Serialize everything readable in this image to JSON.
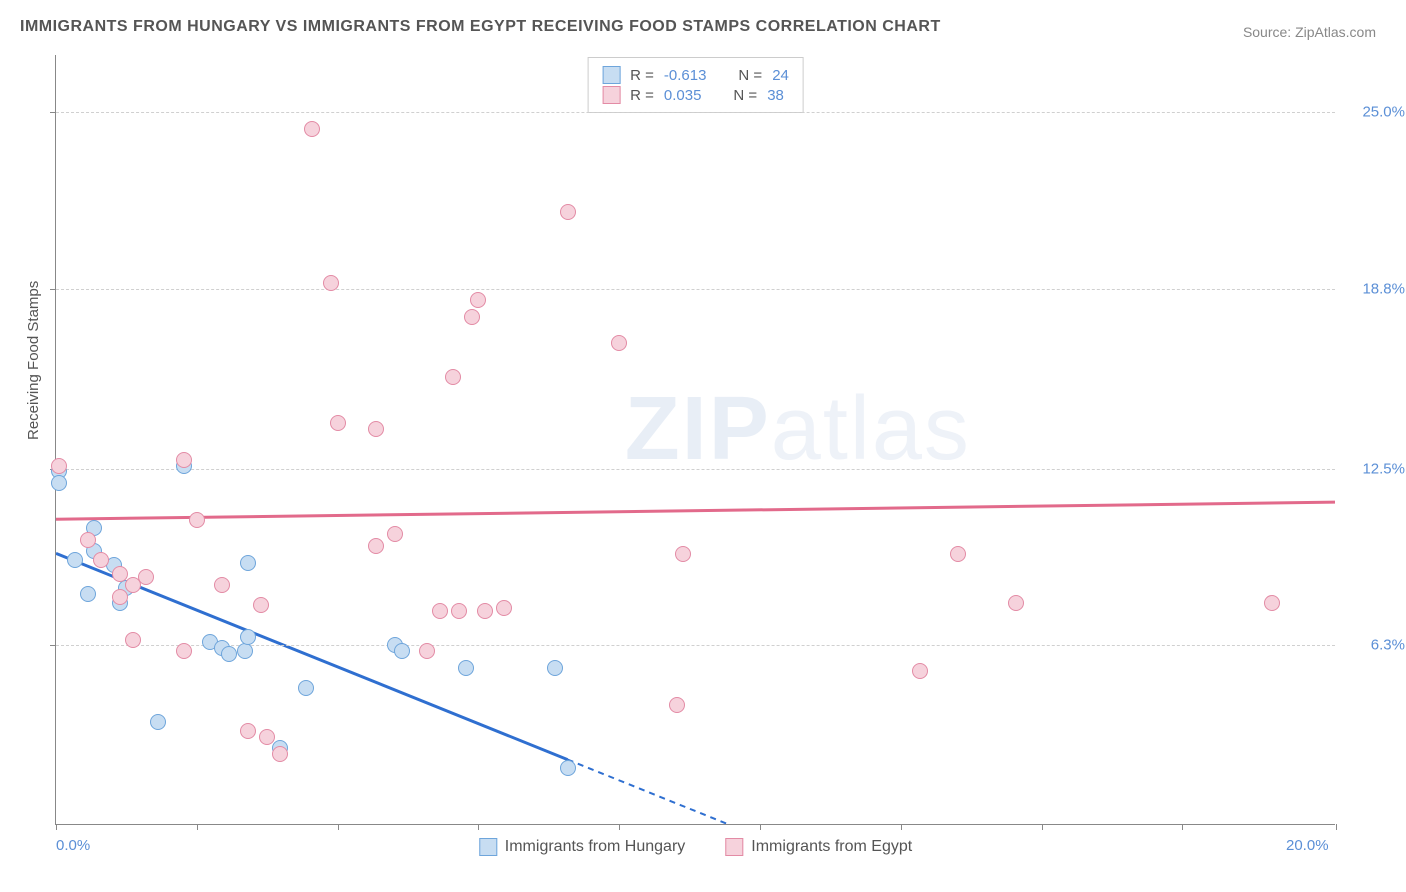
{
  "title": "IMMIGRANTS FROM HUNGARY VS IMMIGRANTS FROM EGYPT RECEIVING FOOD STAMPS CORRELATION CHART",
  "source": "Source: ZipAtlas.com",
  "ylabel": "Receiving Food Stamps",
  "watermark_bold": "ZIP",
  "watermark_thin": "atlas",
  "chart": {
    "type": "scatter",
    "xlim": [
      0,
      20
    ],
    "ylim": [
      0,
      27
    ],
    "x_ticks": [
      0,
      2.2,
      4.4,
      6.6,
      8.8,
      11.0,
      13.2,
      15.4,
      17.6,
      20.0
    ],
    "y_grid": [
      6.3,
      12.5,
      18.8,
      25.0
    ],
    "x_labels": [
      {
        "v": 0,
        "t": "0.0%"
      },
      {
        "v": 20,
        "t": "20.0%"
      }
    ],
    "y_labels": [
      {
        "v": 6.3,
        "t": "6.3%"
      },
      {
        "v": 12.5,
        "t": "12.5%"
      },
      {
        "v": 18.8,
        "t": "18.8%"
      },
      {
        "v": 25.0,
        "t": "25.0%"
      }
    ],
    "background_color": "#ffffff",
    "grid_color": "#d0d0d0",
    "point_radius": 8,
    "series": [
      {
        "name": "Immigrants from Hungary",
        "fill": "#c7ddf2",
        "stroke": "#6ea5db",
        "trend_color": "#2f6fd0",
        "trend": {
          "x1": 0,
          "y1": 9.5,
          "x2": 10.5,
          "y2": 0,
          "dash_from_x": 8.0
        },
        "R": "-0.613",
        "N": "24",
        "points": [
          [
            0.05,
            12.4
          ],
          [
            0.05,
            12.0
          ],
          [
            0.6,
            10.4
          ],
          [
            0.6,
            9.6
          ],
          [
            0.9,
            9.1
          ],
          [
            0.3,
            9.3
          ],
          [
            1.0,
            7.8
          ],
          [
            1.1,
            8.3
          ],
          [
            0.5,
            8.1
          ],
          [
            1.6,
            3.6
          ],
          [
            2.4,
            6.4
          ],
          [
            2.6,
            6.2
          ],
          [
            2.7,
            6.0
          ],
          [
            2.95,
            6.1
          ],
          [
            3.0,
            9.2
          ],
          [
            3.0,
            6.6
          ],
          [
            2.0,
            12.6
          ],
          [
            3.5,
            2.7
          ],
          [
            3.9,
            4.8
          ],
          [
            5.3,
            6.3
          ],
          [
            5.4,
            6.1
          ],
          [
            6.4,
            5.5
          ],
          [
            7.8,
            5.5
          ],
          [
            8.0,
            2.0
          ]
        ]
      },
      {
        "name": "Immigrants from Egypt",
        "fill": "#f6d2dc",
        "stroke": "#e38ba5",
        "trend_color": "#e26a8b",
        "trend": {
          "x1": 0,
          "y1": 10.7,
          "x2": 20,
          "y2": 11.3
        },
        "R": "0.035",
        "N": "38",
        "points": [
          [
            0.05,
            12.6
          ],
          [
            0.5,
            10.0
          ],
          [
            0.7,
            9.3
          ],
          [
            1.0,
            8.0
          ],
          [
            1.0,
            8.8
          ],
          [
            1.2,
            8.4
          ],
          [
            1.4,
            8.7
          ],
          [
            1.2,
            6.5
          ],
          [
            2.0,
            6.1
          ],
          [
            2.0,
            12.8
          ],
          [
            2.2,
            10.7
          ],
          [
            2.6,
            8.4
          ],
          [
            3.0,
            3.3
          ],
          [
            3.2,
            7.7
          ],
          [
            3.3,
            3.1
          ],
          [
            3.5,
            2.5
          ],
          [
            4.0,
            24.4
          ],
          [
            4.3,
            19.0
          ],
          [
            4.4,
            14.1
          ],
          [
            5.0,
            13.9
          ],
          [
            5.0,
            9.8
          ],
          [
            5.3,
            10.2
          ],
          [
            5.8,
            6.1
          ],
          [
            6.0,
            7.5
          ],
          [
            6.2,
            15.7
          ],
          [
            6.3,
            7.5
          ],
          [
            6.5,
            17.8
          ],
          [
            6.6,
            18.4
          ],
          [
            6.7,
            7.5
          ],
          [
            7.0,
            7.6
          ],
          [
            8.0,
            21.5
          ],
          [
            8.8,
            16.9
          ],
          [
            9.7,
            4.2
          ],
          [
            9.8,
            9.5
          ],
          [
            13.5,
            5.4
          ],
          [
            14.1,
            9.5
          ],
          [
            15.0,
            7.8
          ],
          [
            19.0,
            7.8
          ]
        ]
      }
    ]
  },
  "legend": [
    {
      "label": "Immigrants from Hungary",
      "fill": "#c7ddf2",
      "stroke": "#6ea5db"
    },
    {
      "label": "Immigrants from Egypt",
      "fill": "#f6d2dc",
      "stroke": "#e38ba5"
    }
  ]
}
